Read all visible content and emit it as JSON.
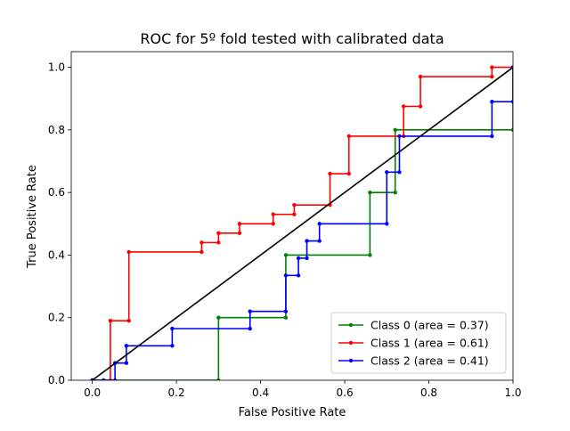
{
  "chart_data": {
    "type": "line",
    "title": "ROC for 5º fold tested with calibrated data",
    "xlabel": "False Positive Rate",
    "ylabel": "True Positive Rate",
    "xlim": [
      -0.05,
      1.0
    ],
    "ylim": [
      0.0,
      1.05
    ],
    "xticks": [
      0.0,
      0.2,
      0.4,
      0.6,
      0.8,
      1.0
    ],
    "xtick_labels": [
      "0.0",
      "0.2",
      "0.4",
      "0.6",
      "0.8",
      "1.0"
    ],
    "yticks": [
      0.0,
      0.2,
      0.4,
      0.6,
      0.8,
      1.0
    ],
    "ytick_labels": [
      "0.0",
      "0.2",
      "0.4",
      "0.6",
      "0.8",
      "1.0"
    ],
    "grid": false,
    "legend_position": "lower-right",
    "series": [
      {
        "name": "Class 0 (area = 0.37)",
        "color": "#008000",
        "marker": true,
        "x": [
          0.0,
          0.0,
          0.3,
          0.3,
          0.46,
          0.46,
          0.66,
          0.66,
          0.72,
          0.72,
          1.0,
          1.0
        ],
        "y": [
          0.0,
          0.0,
          0.0,
          0.2,
          0.2,
          0.4,
          0.4,
          0.6,
          0.6,
          0.8,
          0.8,
          1.0
        ]
      },
      {
        "name": "Class 1 (area = 0.61)",
        "color": "#ff0000",
        "marker": true,
        "x": [
          0.0,
          0.043,
          0.043,
          0.087,
          0.087,
          0.26,
          0.26,
          0.3,
          0.3,
          0.35,
          0.35,
          0.43,
          0.43,
          0.48,
          0.48,
          0.565,
          0.565,
          0.61,
          0.61,
          0.74,
          0.74,
          0.78,
          0.78,
          0.95,
          0.95,
          1.0,
          1.0
        ],
        "y": [
          0.0,
          0.0,
          0.19,
          0.19,
          0.41,
          0.41,
          0.44,
          0.44,
          0.47,
          0.47,
          0.5,
          0.5,
          0.53,
          0.53,
          0.56,
          0.56,
          0.66,
          0.66,
          0.78,
          0.78,
          0.875,
          0.875,
          0.97,
          0.97,
          1.0,
          1.0,
          1.0
        ]
      },
      {
        "name": "Class 2 (area = 0.41)",
        "color": "#0000ff",
        "marker": true,
        "x": [
          0.0,
          0.027,
          0.054,
          0.054,
          0.081,
          0.081,
          0.19,
          0.19,
          0.375,
          0.375,
          0.46,
          0.46,
          0.49,
          0.49,
          0.51,
          0.51,
          0.54,
          0.54,
          0.7,
          0.7,
          0.73,
          0.73,
          0.95,
          0.95,
          1.0,
          1.0
        ],
        "y": [
          0.0,
          0.0,
          0.0,
          0.055,
          0.055,
          0.11,
          0.11,
          0.165,
          0.165,
          0.22,
          0.22,
          0.335,
          0.335,
          0.39,
          0.39,
          0.445,
          0.445,
          0.5,
          0.5,
          0.665,
          0.665,
          0.78,
          0.78,
          0.89,
          0.89,
          1.0
        ]
      },
      {
        "name": "",
        "color": "#000000",
        "marker": false,
        "x": [
          0.0,
          1.0
        ],
        "y": [
          0.0,
          1.0
        ]
      }
    ]
  }
}
